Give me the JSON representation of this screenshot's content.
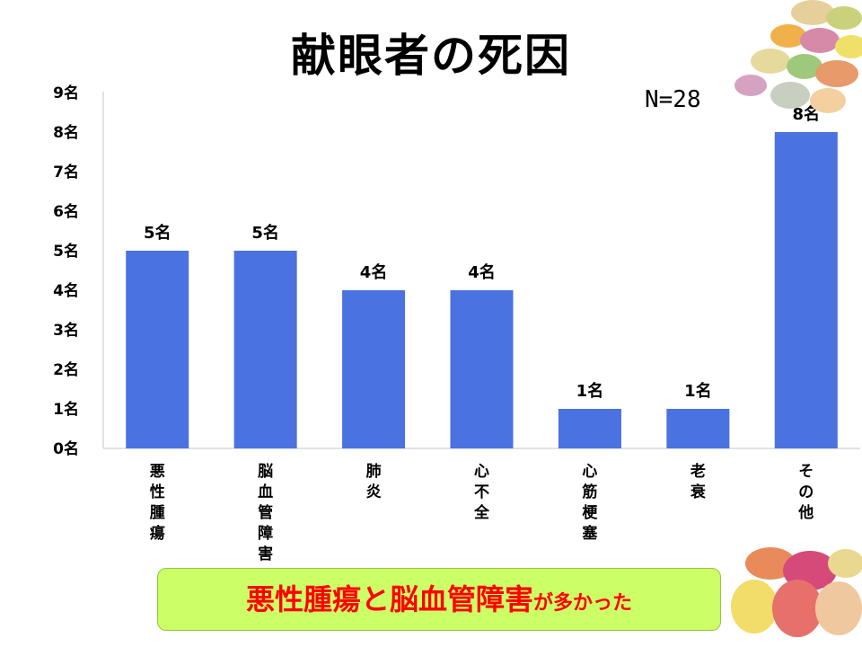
{
  "title": "献眼者の死因",
  "n_label": "N=28",
  "callout": {
    "highlight": "悪性腫瘍と脳血管障害",
    "rest": "が多かった"
  },
  "colors": {
    "bar": "#4a72e0",
    "callout_bg": "#ccff66",
    "callout_text": "#ff0000"
  },
  "chart_data": {
    "type": "bar",
    "categories": [
      "悪性腫瘍",
      "脳血管障害",
      "肺炎",
      "心不全",
      "心筋梗塞",
      "老衰",
      "その他"
    ],
    "values": [
      5,
      5,
      4,
      4,
      1,
      1,
      8
    ],
    "data_labels": [
      "5名",
      "5名",
      "4名",
      "4名",
      "1名",
      "1名",
      "8名"
    ],
    "y_ticks": [
      "0名",
      "1名",
      "2名",
      "3名",
      "4名",
      "5名",
      "6名",
      "7名",
      "8名",
      "9名"
    ],
    "ylim": [
      0,
      9
    ],
    "grid": false,
    "legend": "none"
  }
}
